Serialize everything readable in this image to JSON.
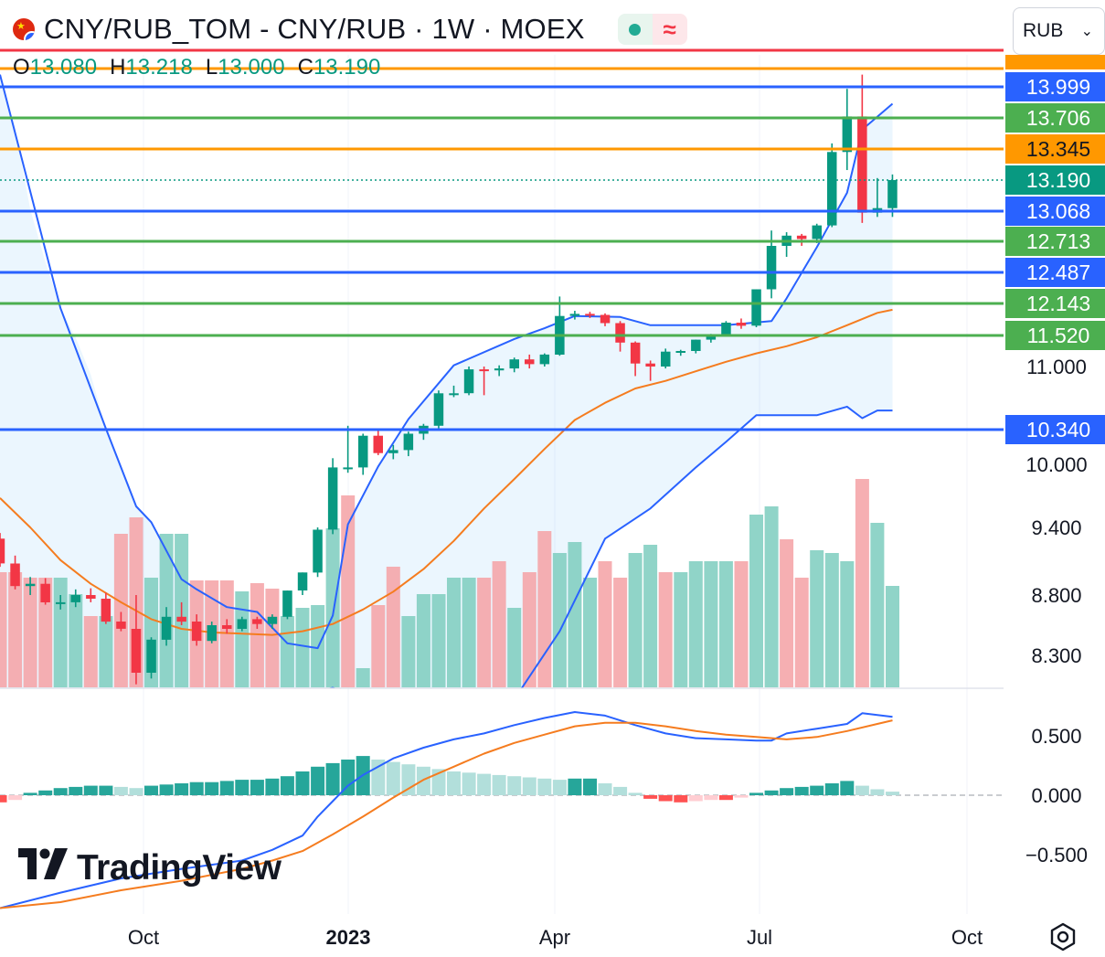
{
  "header": {
    "symbol_title": "CNY/RUB_TOM - CNY/RUB · 1W · MOEX",
    "ohlc": {
      "o_label": "O",
      "o_value": "13.080",
      "h_label": "H",
      "h_value": "13.218",
      "l_label": "L",
      "l_value": "13.000",
      "c_label": "C",
      "c_value": "13.190"
    },
    "currency": "RUB",
    "wave_glyph": "≈"
  },
  "logo": {
    "mark": "17",
    "text": "TradingView"
  },
  "icons": {
    "settings": "settings-icon",
    "dropdown": "chevron-down-icon",
    "flag": "china-flag-icon",
    "status": "market-status-icon"
  },
  "colors": {
    "up": "#089981",
    "down": "#f23645",
    "vol_up": "#84cfc2",
    "vol_down": "#f5a6aa",
    "bb": "#2962ff",
    "ma": "#f57c1f",
    "line_green": "#4caf50",
    "line_orange": "#ff9800",
    "line_red": "#f23645",
    "line_blue": "#2962ff"
  },
  "chart_data": {
    "type": "candlestick",
    "timeframe": "1W",
    "x_ticks": [
      "Oct",
      "2023",
      "Apr",
      "Jul",
      "Oct"
    ],
    "y_ticks": [
      "11.000",
      "10.000",
      "9.400",
      "8.800",
      "8.300"
    ],
    "price_tags": [
      {
        "value": "13.999",
        "color": "#2962ff"
      },
      {
        "value": "13.706",
        "color": "#4caf50"
      },
      {
        "value": "13.345",
        "color": "#ff9800"
      },
      {
        "value": "13.190",
        "color": "#089981"
      },
      {
        "value": "13.068",
        "color": "#2962ff"
      },
      {
        "value": "12.713",
        "color": "#4caf50"
      },
      {
        "value": "12.487",
        "color": "#2962ff"
      },
      {
        "value": "12.143",
        "color": "#4caf50"
      },
      {
        "value": "11.520",
        "color": "#4caf50"
      },
      {
        "value": "10.340",
        "color": "#2962ff"
      }
    ],
    "horizontal_lines": [
      {
        "price": 14.36,
        "color": "#f23645"
      },
      {
        "price": 14.15,
        "color": "#ff9800"
      },
      {
        "price": 13.999,
        "color": "#2962ff"
      },
      {
        "price": 13.706,
        "color": "#4caf50"
      },
      {
        "price": 13.345,
        "color": "#ff9800"
      },
      {
        "price": 13.068,
        "color": "#2962ff"
      },
      {
        "price": 12.713,
        "color": "#4caf50"
      },
      {
        "price": 12.487,
        "color": "#2962ff"
      },
      {
        "price": 12.143,
        "color": "#4caf50"
      },
      {
        "price": 11.52,
        "color": "#4caf50"
      },
      {
        "price": 10.34,
        "color": "#2962ff"
      }
    ],
    "last_price": 13.19,
    "candles": [
      [
        9.3,
        9.35,
        9.05,
        9.08
      ],
      [
        9.08,
        9.15,
        8.85,
        8.88
      ],
      [
        8.88,
        8.96,
        8.8,
        8.9
      ],
      [
        8.9,
        8.95,
        8.72,
        8.74
      ],
      [
        8.74,
        8.8,
        8.68,
        8.74
      ],
      [
        8.74,
        8.85,
        8.7,
        8.8
      ],
      [
        8.8,
        8.86,
        8.74,
        8.77
      ],
      [
        8.77,
        8.82,
        8.56,
        8.58
      ],
      [
        8.58,
        8.66,
        8.5,
        8.52
      ],
      [
        8.52,
        8.8,
        8.05,
        8.15
      ],
      [
        8.15,
        8.45,
        8.1,
        8.43
      ],
      [
        8.43,
        8.7,
        8.38,
        8.62
      ],
      [
        8.62,
        8.74,
        8.55,
        8.58
      ],
      [
        8.58,
        8.64,
        8.38,
        8.42
      ],
      [
        8.42,
        8.58,
        8.4,
        8.55
      ],
      [
        8.55,
        8.6,
        8.48,
        8.52
      ],
      [
        8.52,
        8.62,
        8.5,
        8.6
      ],
      [
        8.6,
        8.62,
        8.52,
        8.56
      ],
      [
        8.56,
        8.64,
        8.52,
        8.62
      ],
      [
        8.62,
        8.84,
        8.6,
        8.84
      ],
      [
        8.84,
        9.0,
        8.8,
        9.0
      ],
      [
        9.0,
        9.4,
        8.96,
        9.38
      ],
      [
        9.38,
        10.06,
        9.34,
        9.97
      ],
      [
        9.97,
        10.38,
        9.92,
        9.97
      ],
      [
        9.97,
        10.3,
        9.9,
        10.28
      ],
      [
        10.28,
        10.33,
        10.09,
        10.11
      ],
      [
        10.11,
        10.19,
        10.05,
        10.14
      ],
      [
        10.14,
        10.32,
        10.08,
        10.3
      ],
      [
        10.3,
        10.4,
        10.24,
        10.38
      ],
      [
        10.38,
        10.75,
        10.35,
        10.72
      ],
      [
        10.72,
        10.8,
        10.68,
        10.72
      ],
      [
        10.72,
        11.0,
        10.7,
        10.97
      ],
      [
        10.97,
        11.0,
        10.7,
        10.96
      ],
      [
        10.96,
        11.02,
        10.9,
        10.98
      ],
      [
        10.98,
        11.15,
        10.94,
        11.12
      ],
      [
        11.12,
        11.2,
        10.98,
        11.04
      ],
      [
        11.04,
        11.22,
        11.0,
        11.2
      ],
      [
        11.2,
        12.22,
        11.18,
        11.9
      ],
      [
        11.9,
        12.0,
        11.83,
        11.94
      ],
      [
        11.94,
        11.98,
        11.86,
        11.92
      ],
      [
        11.92,
        11.95,
        11.7,
        11.76
      ],
      [
        11.76,
        11.8,
        11.25,
        11.4
      ],
      [
        11.4,
        11.42,
        10.9,
        11.05
      ],
      [
        11.05,
        11.1,
        10.85,
        11.0
      ],
      [
        11.0,
        11.3,
        10.98,
        11.25
      ],
      [
        11.25,
        11.28,
        11.18,
        11.26
      ],
      [
        11.26,
        11.45,
        11.22,
        11.45
      ],
      [
        11.45,
        11.55,
        11.4,
        11.54
      ],
      [
        11.54,
        11.8,
        11.52,
        11.77
      ],
      [
        11.77,
        11.85,
        11.65,
        11.71
      ],
      [
        11.71,
        12.3,
        11.68,
        12.3
      ],
      [
        12.3,
        12.84,
        12.2,
        12.68
      ],
      [
        12.68,
        12.82,
        12.6,
        12.78
      ],
      [
        12.78,
        12.8,
        12.68,
        12.74
      ],
      [
        12.74,
        12.92,
        12.7,
        12.9
      ],
      [
        12.9,
        13.41,
        12.88,
        13.33
      ],
      [
        13.33,
        13.98,
        13.24,
        13.72
      ],
      [
        13.72,
        14.1,
        12.93,
        13.05
      ],
      [
        13.05,
        13.2,
        13.0,
        13.08
      ],
      [
        13.08,
        13.218,
        13.0,
        13.19
      ]
    ],
    "volume": [
      [
        0.42,
        0
      ],
      [
        0.42,
        0
      ],
      [
        0.4,
        0
      ],
      [
        0.4,
        0
      ],
      [
        0.4,
        1
      ],
      [
        0.34,
        1
      ],
      [
        0.26,
        0
      ],
      [
        0.26,
        1
      ],
      [
        0.56,
        0
      ],
      [
        0.62,
        0
      ],
      [
        0.4,
        1
      ],
      [
        0.56,
        1
      ],
      [
        0.56,
        1
      ],
      [
        0.39,
        0
      ],
      [
        0.39,
        0
      ],
      [
        0.39,
        0
      ],
      [
        0.35,
        1
      ],
      [
        0.38,
        0
      ],
      [
        0.36,
        0
      ],
      [
        0.26,
        1
      ],
      [
        0.29,
        1
      ],
      [
        0.3,
        1
      ],
      [
        0.58,
        1
      ],
      [
        0.7,
        0
      ],
      [
        0.07,
        1
      ],
      [
        0.3,
        0
      ],
      [
        0.44,
        0
      ],
      [
        0.26,
        1
      ],
      [
        0.34,
        1
      ],
      [
        0.34,
        1
      ],
      [
        0.4,
        1
      ],
      [
        0.4,
        1
      ],
      [
        0.4,
        0
      ],
      [
        0.46,
        0
      ],
      [
        0.29,
        1
      ],
      [
        0.42,
        0
      ],
      [
        0.57,
        0
      ],
      [
        0.49,
        1
      ],
      [
        0.53,
        1
      ],
      [
        0.4,
        1
      ],
      [
        0.46,
        0
      ],
      [
        0.4,
        0
      ],
      [
        0.49,
        1
      ],
      [
        0.52,
        1
      ],
      [
        0.42,
        0
      ],
      [
        0.42,
        1
      ],
      [
        0.46,
        1
      ],
      [
        0.46,
        1
      ],
      [
        0.46,
        1
      ],
      [
        0.46,
        0
      ],
      [
        0.63,
        1
      ],
      [
        0.66,
        1
      ],
      [
        0.54,
        0
      ],
      [
        0.4,
        0
      ],
      [
        0.5,
        1
      ],
      [
        0.49,
        1
      ],
      [
        0.46,
        1
      ],
      [
        0.76,
        0
      ],
      [
        0.6,
        1
      ],
      [
        0.37,
        1
      ]
    ],
    "bollinger_upper": [
      [
        0,
        14.1
      ],
      [
        4,
        12.05
      ],
      [
        7,
        10.35
      ],
      [
        9,
        9.6
      ],
      [
        10,
        9.45
      ],
      [
        12,
        8.94
      ],
      [
        13,
        8.85
      ],
      [
        15,
        8.7
      ],
      [
        17,
        8.66
      ],
      [
        19,
        8.4
      ],
      [
        21,
        8.36
      ],
      [
        22,
        8.63
      ],
      [
        23,
        9.43
      ],
      [
        25,
        9.98
      ],
      [
        27,
        10.45
      ],
      [
        30,
        11.02
      ],
      [
        34,
        11.46
      ],
      [
        36,
        11.66
      ],
      [
        38,
        11.9
      ],
      [
        41,
        11.88
      ],
      [
        43,
        11.72
      ],
      [
        45,
        11.72
      ],
      [
        48,
        11.72
      ],
      [
        51,
        11.8
      ],
      [
        52,
        12.2
      ],
      [
        54,
        12.67
      ],
      [
        56,
        13.14
      ],
      [
        57,
        13.57
      ],
      [
        59,
        13.84
      ]
    ],
    "bollinger_lower": [
      [
        14,
        7.95
      ],
      [
        20,
        7.95
      ],
      [
        22,
        8.02
      ],
      [
        24,
        7.92
      ],
      [
        28,
        7.92
      ],
      [
        34,
        7.92
      ],
      [
        37,
        8.5
      ],
      [
        40,
        9.3
      ],
      [
        43,
        9.58
      ],
      [
        46,
        9.97
      ],
      [
        48,
        10.22
      ],
      [
        50,
        10.49
      ],
      [
        52,
        10.49
      ],
      [
        54,
        10.49
      ],
      [
        56,
        10.58
      ],
      [
        57,
        10.46
      ],
      [
        58,
        10.54
      ],
      [
        59,
        10.54
      ]
    ],
    "moving_average": [
      [
        0,
        9.68
      ],
      [
        2,
        9.4
      ],
      [
        4,
        9.11
      ],
      [
        6,
        8.9
      ],
      [
        8,
        8.74
      ],
      [
        10,
        8.6
      ],
      [
        12,
        8.52
      ],
      [
        14,
        8.49
      ],
      [
        16,
        8.48
      ],
      [
        18,
        8.47
      ],
      [
        20,
        8.5
      ],
      [
        22,
        8.56
      ],
      [
        24,
        8.68
      ],
      [
        26,
        8.83
      ],
      [
        28,
        9.03
      ],
      [
        30,
        9.28
      ],
      [
        32,
        9.58
      ],
      [
        34,
        9.86
      ],
      [
        36,
        10.15
      ],
      [
        38,
        10.44
      ],
      [
        40,
        10.62
      ],
      [
        42,
        10.77
      ],
      [
        44,
        10.85
      ],
      [
        46,
        10.95
      ],
      [
        48,
        11.08
      ],
      [
        50,
        11.22
      ],
      [
        52,
        11.34
      ],
      [
        54,
        11.49
      ],
      [
        56,
        11.72
      ],
      [
        58,
        11.96
      ],
      [
        59,
        12.02
      ]
    ],
    "macd": {
      "y_ticks": [
        "0.500",
        "0.000",
        "−0.500"
      ],
      "macd_line": [
        [
          0,
          -0.95
        ],
        [
          4,
          -0.82
        ],
        [
          8,
          -0.7
        ],
        [
          12,
          -0.62
        ],
        [
          16,
          -0.55
        ],
        [
          18,
          -0.46
        ],
        [
          20,
          -0.34
        ],
        [
          21,
          -0.18
        ],
        [
          22,
          -0.05
        ],
        [
          23,
          0.08
        ],
        [
          24,
          0.17
        ],
        [
          26,
          0.31
        ],
        [
          28,
          0.4
        ],
        [
          30,
          0.47
        ],
        [
          32,
          0.52
        ],
        [
          34,
          0.59
        ],
        [
          36,
          0.65
        ],
        [
          38,
          0.7
        ],
        [
          40,
          0.67
        ],
        [
          42,
          0.59
        ],
        [
          44,
          0.52
        ],
        [
          46,
          0.48
        ],
        [
          48,
          0.47
        ],
        [
          50,
          0.46
        ],
        [
          51,
          0.46
        ],
        [
          52,
          0.52
        ],
        [
          54,
          0.56
        ],
        [
          56,
          0.6
        ],
        [
          57,
          0.69
        ],
        [
          59,
          0.66
        ]
      ],
      "signal_line": [
        [
          0,
          -0.95
        ],
        [
          4,
          -0.9
        ],
        [
          8,
          -0.8
        ],
        [
          12,
          -0.72
        ],
        [
          16,
          -0.62
        ],
        [
          18,
          -0.55
        ],
        [
          20,
          -0.47
        ],
        [
          22,
          -0.33
        ],
        [
          24,
          -0.18
        ],
        [
          26,
          -0.02
        ],
        [
          28,
          0.13
        ],
        [
          30,
          0.24
        ],
        [
          32,
          0.35
        ],
        [
          34,
          0.44
        ],
        [
          36,
          0.51
        ],
        [
          38,
          0.58
        ],
        [
          40,
          0.61
        ],
        [
          42,
          0.61
        ],
        [
          44,
          0.58
        ],
        [
          46,
          0.54
        ],
        [
          48,
          0.51
        ],
        [
          50,
          0.49
        ],
        [
          52,
          0.47
        ],
        [
          54,
          0.49
        ],
        [
          56,
          0.54
        ],
        [
          58,
          0.6
        ],
        [
          59,
          0.63
        ]
      ],
      "histogram": [
        -0.06,
        -0.04,
        0.02,
        0.04,
        0.06,
        0.07,
        0.08,
        0.08,
        0.07,
        0.06,
        0.08,
        0.09,
        0.1,
        0.11,
        0.11,
        0.12,
        0.13,
        0.13,
        0.14,
        0.16,
        0.2,
        0.24,
        0.27,
        0.3,
        0.33,
        0.3,
        0.28,
        0.26,
        0.24,
        0.22,
        0.2,
        0.19,
        0.18,
        0.17,
        0.16,
        0.15,
        0.14,
        0.13,
        0.14,
        0.14,
        0.1,
        0.07,
        0.02,
        -0.03,
        -0.05,
        -0.06,
        -0.05,
        -0.04,
        -0.04,
        -0.02,
        0.02,
        0.04,
        0.06,
        0.07,
        0.08,
        0.1,
        0.12,
        0.08,
        0.05,
        0.03
      ]
    }
  }
}
